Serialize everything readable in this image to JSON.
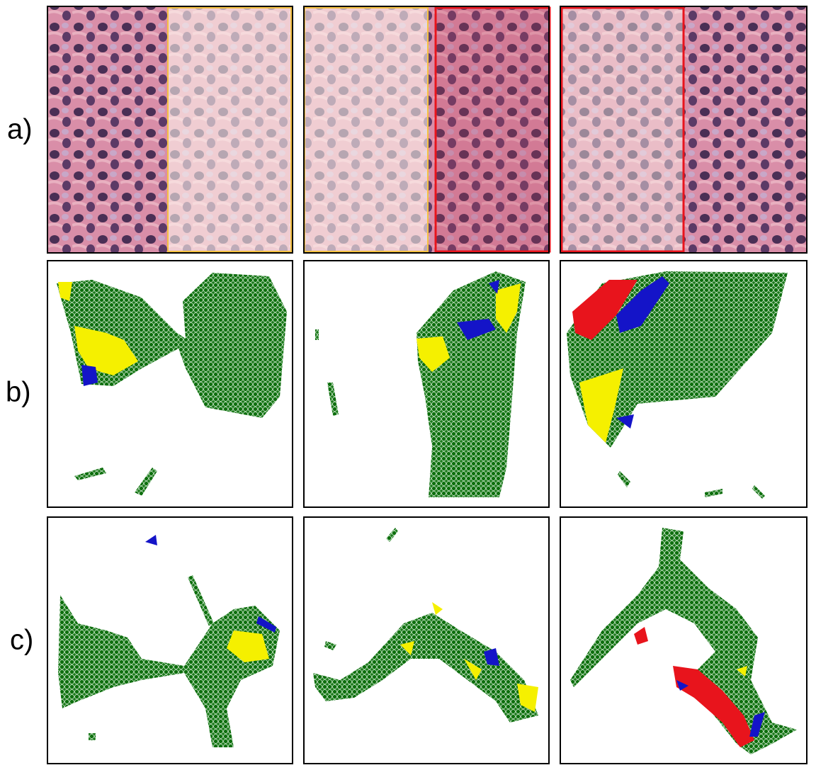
{
  "rows": [
    {
      "label": "a)"
    },
    {
      "label": "b)"
    },
    {
      "label": "c)"
    }
  ]
}
